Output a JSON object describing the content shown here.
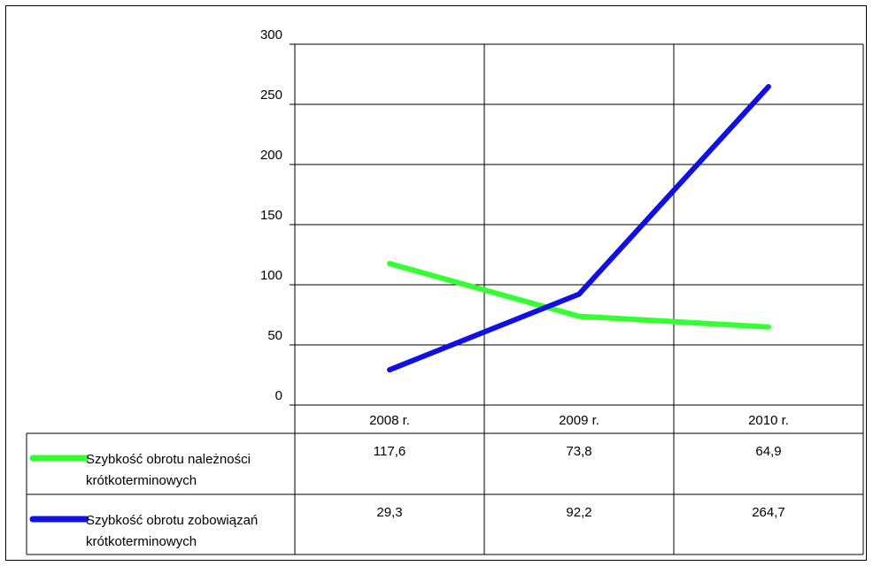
{
  "chart_data": {
    "type": "line",
    "title": "",
    "xlabel": "",
    "ylabel": "",
    "categories": [
      "2008 r.",
      "2009 r.",
      "2010 r."
    ],
    "ylim": [
      0,
      300
    ],
    "yticks": [
      0,
      50,
      100,
      150,
      200,
      250,
      300
    ],
    "grid": true,
    "legend": "data-table-left",
    "series": [
      {
        "name": "Szybkość obrotu należności krótkoterminowych",
        "name_lines": [
          "Szybkość obrotu należności",
          "krótkoterminowych"
        ],
        "values": [
          117.6,
          73.8,
          64.9
        ],
        "value_labels": [
          "117,6",
          "73,8",
          "64,9"
        ],
        "color": "#33ff33"
      },
      {
        "name": "Szybkość obrotu zobowiązań krótkoterminowych",
        "name_lines": [
          "Szybkość obrotu zobowiązań",
          "krótkoterminowych"
        ],
        "values": [
          29.3,
          92.2,
          264.7
        ],
        "value_labels": [
          "29,3",
          "92,2",
          "264,7"
        ],
        "color": "#1010e0"
      }
    ]
  }
}
